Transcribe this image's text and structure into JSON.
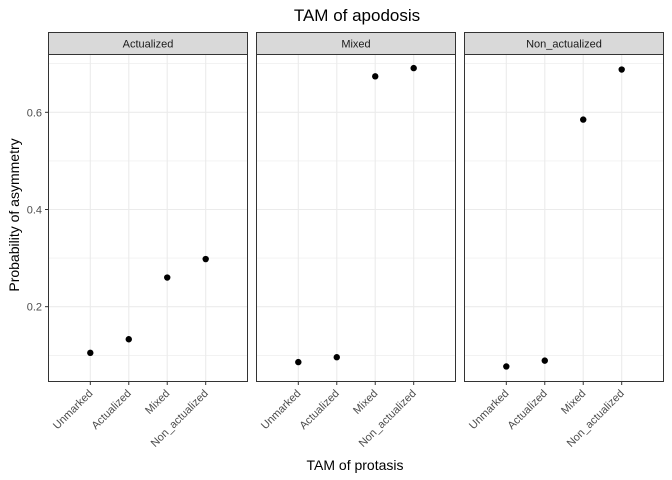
{
  "chart_data": {
    "type": "scatter",
    "title": "TAM of apodosis",
    "xlabel": "TAM of protasis",
    "ylabel": "Probability of asymmetry",
    "categories": [
      "Unmarked",
      "Actualized",
      "Mixed",
      "Non_actualized"
    ],
    "ylim": [
      0.045,
      0.72
    ],
    "yticks": [
      0.2,
      0.4,
      0.6
    ],
    "ytick_labels": [
      "0.2",
      "0.4",
      "0.6"
    ],
    "grid": true,
    "point_color": "#000000",
    "strip_fill": "#d9d9d9",
    "grid_color": "#ebebeb",
    "facets": [
      {
        "label": "Actualized",
        "values": [
          0.105,
          0.133,
          0.26,
          0.298
        ]
      },
      {
        "label": "Mixed",
        "values": [
          0.086,
          0.096,
          0.674,
          0.691
        ]
      },
      {
        "label": "Non_actualized",
        "values": [
          0.077,
          0.089,
          0.585,
          0.688
        ]
      }
    ]
  }
}
